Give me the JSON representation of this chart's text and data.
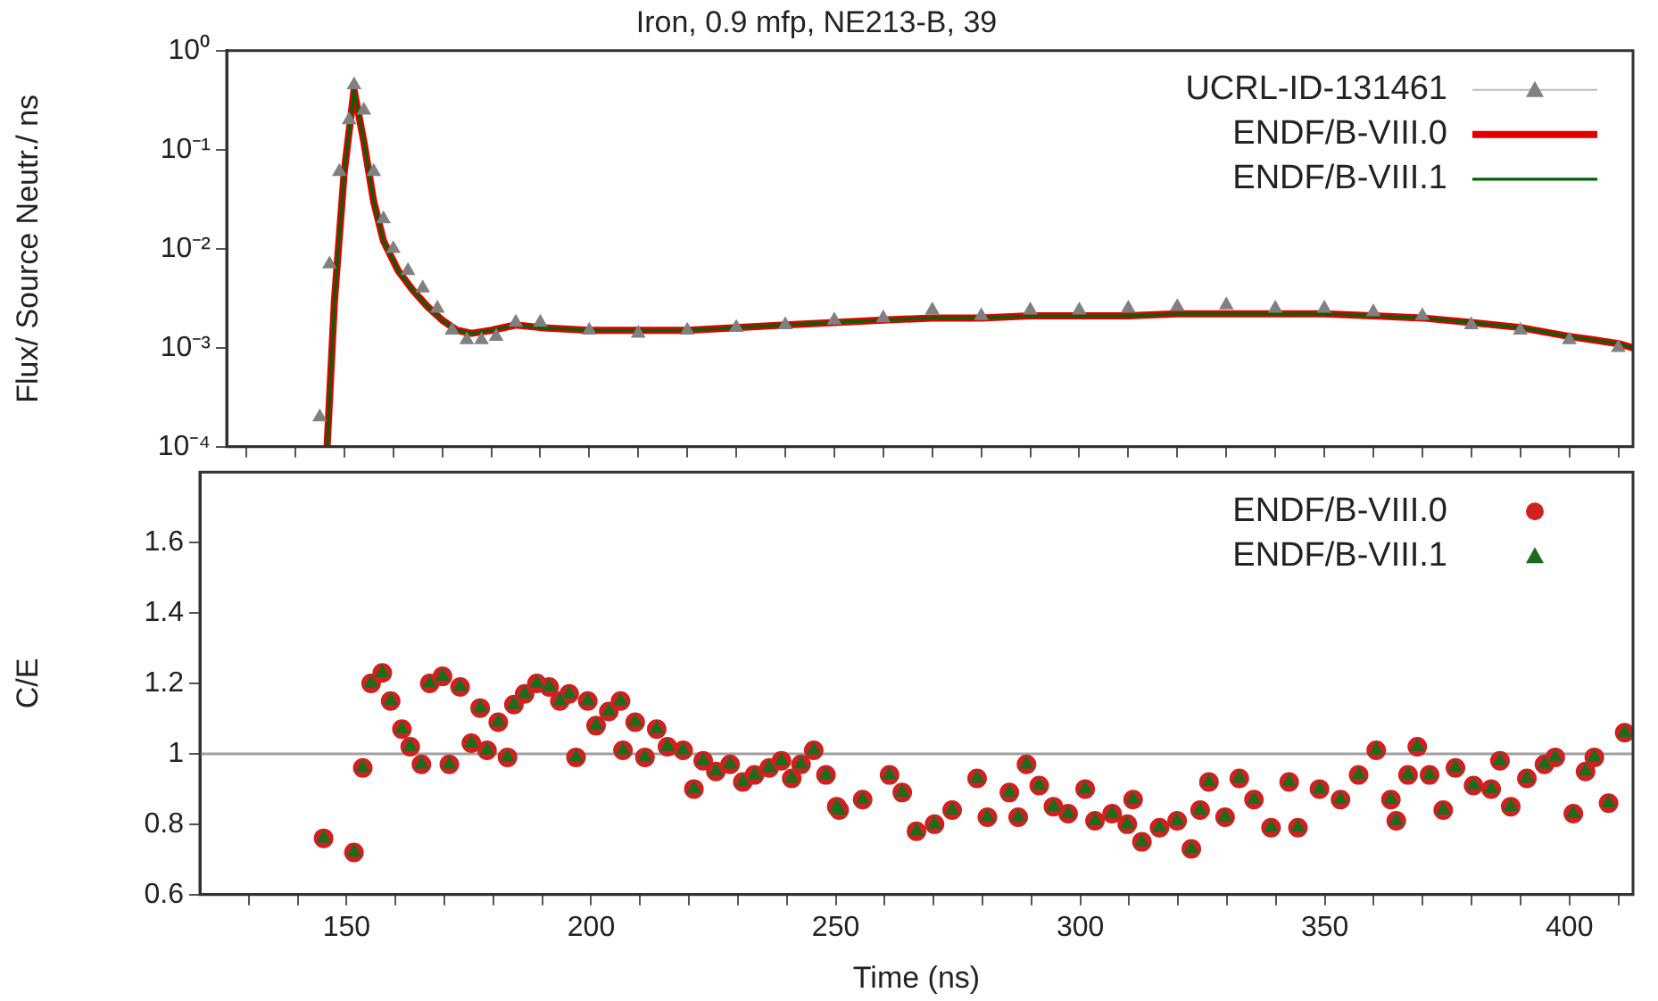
{
  "chart_data": [
    {
      "type": "line",
      "title": "Iron, 0.9 mfp, NE213-B, 39",
      "ylabel": "Flux/ Source Neutr./ ns",
      "log": "y",
      "grid": false,
      "legend": "top right",
      "tick_labels": "y",
      "xlim": [
        126,
        413
      ],
      "xticks": [
        {
          "value": 130,
          "label": null
        },
        {
          "value": 140,
          "label": null
        },
        150,
        {
          "value": 160,
          "label": null
        },
        {
          "value": 170,
          "label": null
        },
        {
          "value": 180,
          "label": null
        },
        {
          "value": 190,
          "label": null
        },
        200,
        {
          "value": 210,
          "label": null
        },
        {
          "value": 220,
          "label": null
        },
        {
          "value": 230,
          "label": null
        },
        {
          "value": 240,
          "label": null
        },
        250,
        {
          "value": 260,
          "label": null
        },
        {
          "value": 270,
          "label": null
        },
        {
          "value": 280,
          "label": null
        },
        {
          "value": 290,
          "label": null
        },
        300,
        {
          "value": 310,
          "label": null
        },
        {
          "value": 320,
          "label": null
        },
        {
          "value": 330,
          "label": null
        },
        {
          "value": 340,
          "label": null
        },
        350,
        {
          "value": 360,
          "label": null
        },
        {
          "value": 370,
          "label": null
        },
        {
          "value": 380,
          "label": null
        },
        {
          "value": 390,
          "label": null
        },
        400,
        {
          "value": 410,
          "label": null
        }
      ],
      "ylim": [
        0.0001,
        1
      ],
      "yticks": [
        {
          "value": 0.0001,
          "label": "10⁻⁴"
        },
        {
          "value": 0.001,
          "label": "10⁻³"
        },
        {
          "value": 0.01,
          "label": "10⁻²"
        },
        {
          "value": 0.1,
          "label": "10⁻¹"
        },
        {
          "value": 1,
          "label": "10⁰"
        }
      ],
      "series": [
        {
          "name": "ENDF/B-VIII.0",
          "type": "line",
          "color": "#e00000",
          "x": [
            146.5,
            148,
            150,
            152,
            154,
            156,
            158,
            161,
            164,
            167,
            170,
            173,
            176,
            180,
            185,
            190,
            200,
            210,
            220,
            230,
            240,
            250,
            260,
            270,
            280,
            290,
            300,
            310,
            320,
            330,
            340,
            350,
            360,
            370,
            380,
            390,
            400,
            405,
            410,
            413
          ],
          "values": [
            0.0001,
            0.003,
            0.06,
            0.4,
            0.12,
            0.03,
            0.012,
            0.006,
            0.0038,
            0.0026,
            0.0019,
            0.0015,
            0.0014,
            0.0015,
            0.0017,
            0.0016,
            0.0015,
            0.0015,
            0.0015,
            0.0016,
            0.0017,
            0.0018,
            0.0019,
            0.002,
            0.002,
            0.0021,
            0.0021,
            0.0021,
            0.0022,
            0.0022,
            0.0022,
            0.0022,
            0.0021,
            0.002,
            0.0018,
            0.0016,
            0.0013,
            0.0012,
            0.0011,
            0.001
          ]
        },
        {
          "name": "ENDF/B-VIII.1",
          "type": "line",
          "color": "#006400",
          "x": [
            146.5,
            148,
            150,
            152,
            154,
            156,
            158,
            161,
            164,
            167,
            170,
            173,
            176,
            180,
            185,
            190,
            200,
            210,
            220,
            230,
            240,
            250,
            260,
            270,
            280,
            290,
            300,
            310,
            320,
            330,
            340,
            350,
            360,
            370,
            380,
            390,
            400,
            405,
            410,
            413
          ],
          "values": [
            0.0001,
            0.003,
            0.06,
            0.4,
            0.12,
            0.03,
            0.012,
            0.006,
            0.0038,
            0.0026,
            0.0019,
            0.0015,
            0.0014,
            0.0015,
            0.0017,
            0.0016,
            0.0015,
            0.0015,
            0.0015,
            0.0016,
            0.0017,
            0.0018,
            0.0019,
            0.002,
            0.002,
            0.0021,
            0.0021,
            0.0021,
            0.0022,
            0.0022,
            0.0022,
            0.0022,
            0.0021,
            0.002,
            0.0018,
            0.0016,
            0.0013,
            0.0012,
            0.0011,
            0.001
          ]
        },
        {
          "name": "UCRL-ID-131461",
          "type": "scatter",
          "marker": "triangle",
          "color": "#808080",
          "x": [
            145,
            147,
            149,
            151,
            152,
            154,
            156,
            158,
            160,
            163,
            166,
            169,
            172,
            175,
            178,
            181,
            185,
            190,
            200,
            210,
            220,
            230,
            240,
            250,
            260,
            270,
            280,
            290,
            300,
            310,
            320,
            330,
            340,
            350,
            360,
            370,
            380,
            390,
            400,
            410
          ],
          "values": [
            0.0002,
            0.007,
            0.06,
            0.2,
            0.45,
            0.25,
            0.06,
            0.02,
            0.01,
            0.006,
            0.004,
            0.0025,
            0.0015,
            0.0012,
            0.0012,
            0.0013,
            0.0018,
            0.0018,
            0.0015,
            0.0014,
            0.0015,
            0.0016,
            0.0017,
            0.0019,
            0.002,
            0.0024,
            0.0021,
            0.0024,
            0.0024,
            0.0025,
            0.0026,
            0.0027,
            0.0025,
            0.0025,
            0.0023,
            0.0021,
            0.0017,
            0.0015,
            0.0012,
            0.001
          ]
        }
      ]
    },
    {
      "type": "scatter",
      "xlabel": "Time (ns)",
      "ylabel": "C/E",
      "grid": false,
      "legend": "top right",
      "xlim": [
        120,
        413
      ],
      "xticks": [
        {
          "value": 130,
          "label": null
        },
        {
          "value": 140,
          "label": null
        },
        150,
        {
          "value": 160,
          "label": null
        },
        {
          "value": 170,
          "label": null
        },
        {
          "value": 180,
          "label": null
        },
        {
          "value": 190,
          "label": null
        },
        200,
        {
          "value": 210,
          "label": null
        },
        {
          "value": 220,
          "label": null
        },
        {
          "value": 230,
          "label": null
        },
        {
          "value": 240,
          "label": null
        },
        250,
        {
          "value": 260,
          "label": null
        },
        {
          "value": 270,
          "label": null
        },
        {
          "value": 280,
          "label": null
        },
        {
          "value": 290,
          "label": null
        },
        300,
        {
          "value": 310,
          "label": null
        },
        {
          "value": 320,
          "label": null
        },
        {
          "value": 330,
          "label": null
        },
        {
          "value": 340,
          "label": null
        },
        350,
        {
          "value": 360,
          "label": null
        },
        {
          "value": 370,
          "label": null
        },
        {
          "value": 380,
          "label": null
        },
        {
          "value": 390,
          "label": null
        },
        400,
        {
          "value": 410,
          "label": null
        }
      ],
      "ylim": [
        0.6,
        1.8
      ],
      "yticks": [
        0.6,
        0.8,
        1,
        1.2,
        1.4,
        1.6
      ],
      "ref_lines": [
        {
          "axis": "y",
          "value": 1,
          "color": "#a0a0a0"
        }
      ],
      "x": [
        145.3,
        151.5,
        153.3,
        155,
        157.3,
        159,
        161.3,
        163,
        165.3,
        167,
        169.6,
        171,
        173.2,
        175.5,
        177.3,
        178.7,
        181,
        182.9,
        184.2,
        186.4,
        188.9,
        191.4,
        193.6,
        195.5,
        196.9,
        199.3,
        201,
        203.6,
        206,
        206.5,
        209,
        211,
        213.4,
        215.6,
        218.8,
        221,
        222.9,
        225.5,
        228.4,
        231,
        233.4,
        236.4,
        238.9,
        241,
        242.9,
        245.5,
        248,
        250.2,
        250.7,
        255.5,
        261,
        263.6,
        266.5,
        270.2,
        273.8,
        278.9,
        281,
        285.5,
        287.3,
        289,
        291.6,
        294.5,
        297.5,
        301,
        303,
        306.5,
        309.6,
        310.8,
        312.6,
        316.2,
        319.8,
        322.7,
        324.5,
        326.3,
        329.6,
        332.5,
        335.5,
        339,
        342.7,
        344.5,
        348.9,
        353.2,
        356.9,
        360.5,
        363.5,
        364.6,
        367,
        368.9,
        371.4,
        374.2,
        376.7,
        380.4,
        384,
        385.8,
        388,
        391.3,
        394.9,
        397.1,
        400.8,
        403.3,
        405.1,
        408,
        411.3
      ],
      "series": [
        {
          "name": "ENDF/B-VIII.0",
          "marker": "circle",
          "color": "#d02020",
          "values": [
            0.76,
            0.72,
            0.96,
            1.2,
            1.23,
            1.15,
            1.07,
            1.02,
            0.97,
            1.2,
            1.22,
            0.97,
            1.19,
            1.03,
            1.13,
            1.01,
            1.09,
            0.99,
            1.14,
            1.17,
            1.2,
            1.19,
            1.15,
            1.17,
            0.99,
            1.15,
            1.08,
            1.12,
            1.15,
            1.01,
            1.09,
            0.99,
            1.07,
            1.02,
            1.01,
            0.9,
            0.98,
            0.95,
            0.97,
            0.92,
            0.94,
            0.96,
            0.98,
            0.93,
            0.97,
            1.01,
            0.94,
            0.85,
            0.84,
            0.87,
            0.94,
            0.89,
            0.78,
            0.8,
            0.84,
            0.93,
            0.82,
            0.89,
            0.82,
            0.97,
            0.91,
            0.85,
            0.83,
            0.9,
            0.81,
            0.83,
            0.8,
            0.87,
            0.75,
            0.79,
            0.81,
            0.73,
            0.84,
            0.92,
            0.82,
            0.93,
            0.87,
            0.79,
            0.92,
            0.79,
            0.9,
            0.87,
            0.94,
            1.01,
            0.87,
            0.81,
            0.94,
            1.02,
            0.94,
            0.84,
            0.96,
            0.91,
            0.9,
            0.98,
            0.85,
            0.93,
            0.97,
            0.99,
            0.83,
            0.95,
            0.99,
            0.86,
            1.06
          ]
        },
        {
          "name": "ENDF/B-VIII.1",
          "marker": "triangle",
          "color": "#1e6b1e",
          "values": [
            0.76,
            0.72,
            0.96,
            1.2,
            1.23,
            1.15,
            1.07,
            1.02,
            0.97,
            1.2,
            1.22,
            0.97,
            1.19,
            1.03,
            1.13,
            1.01,
            1.09,
            0.99,
            1.14,
            1.17,
            1.2,
            1.19,
            1.15,
            1.17,
            0.99,
            1.15,
            1.08,
            1.12,
            1.15,
            1.01,
            1.09,
            0.99,
            1.07,
            1.02,
            1.01,
            0.9,
            0.98,
            0.95,
            0.97,
            0.92,
            0.94,
            0.96,
            0.98,
            0.93,
            0.97,
            1.01,
            0.94,
            0.85,
            0.84,
            0.87,
            0.94,
            0.89,
            0.78,
            0.8,
            0.84,
            0.93,
            0.82,
            0.89,
            0.82,
            0.97,
            0.91,
            0.85,
            0.83,
            0.9,
            0.81,
            0.83,
            0.8,
            0.87,
            0.75,
            0.79,
            0.81,
            0.73,
            0.84,
            0.92,
            0.82,
            0.93,
            0.87,
            0.79,
            0.92,
            0.79,
            0.9,
            0.87,
            0.94,
            1.01,
            0.87,
            0.81,
            0.94,
            1.02,
            0.94,
            0.84,
            0.96,
            0.91,
            0.9,
            0.98,
            0.85,
            0.93,
            0.97,
            0.99,
            0.83,
            0.95,
            0.99,
            0.86,
            1.06
          ]
        }
      ]
    }
  ]
}
